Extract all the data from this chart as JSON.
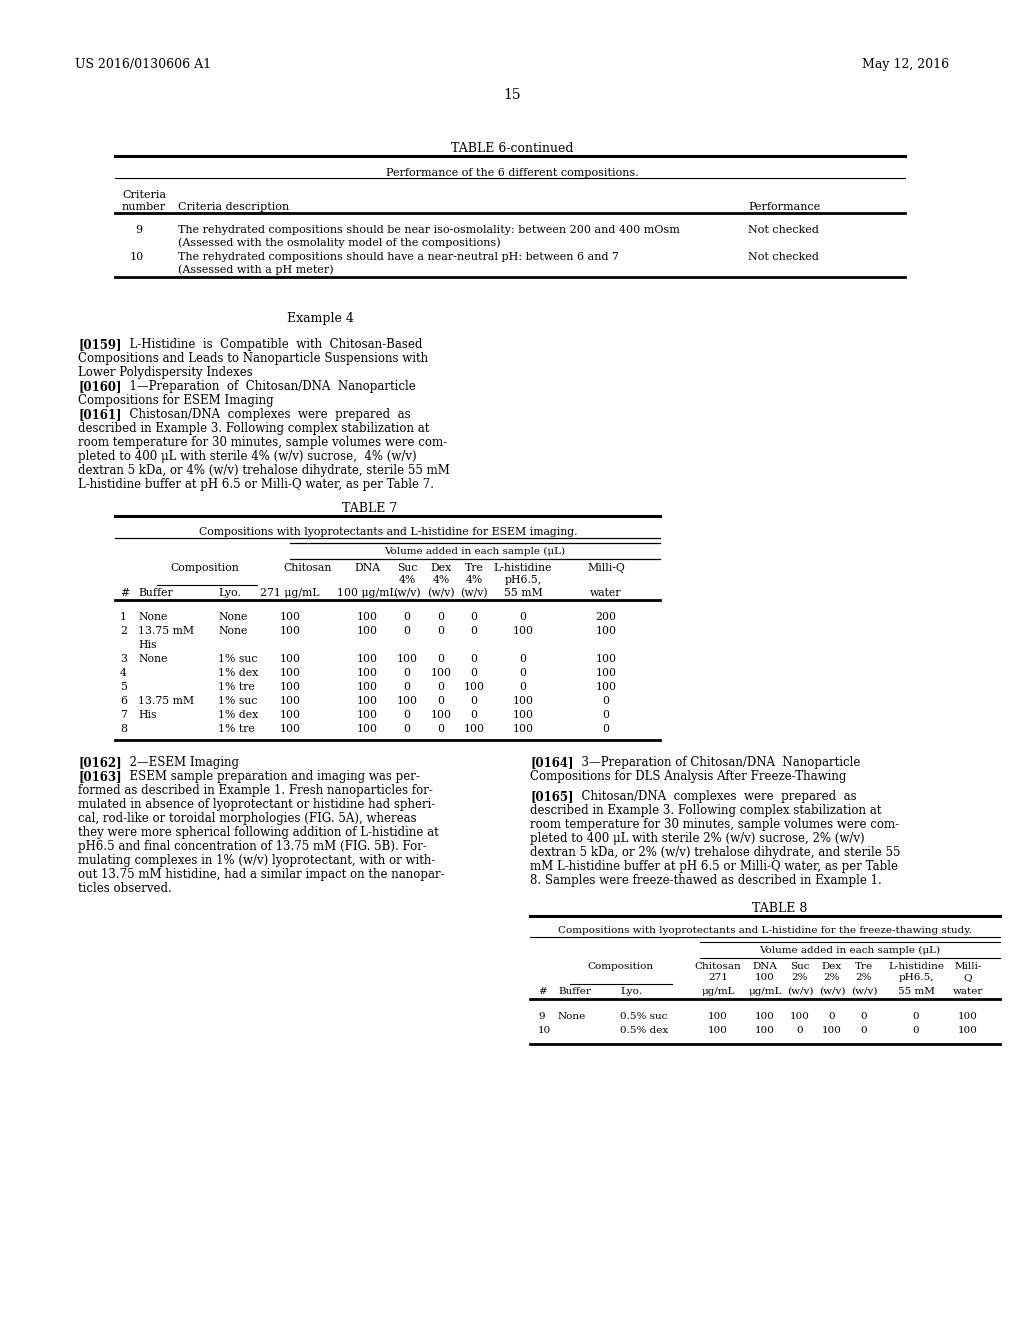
{
  "page_header_left": "US 2016/0130606 A1",
  "page_header_right": "May 12, 2016",
  "page_number": "15",
  "bg_color": "#ffffff"
}
